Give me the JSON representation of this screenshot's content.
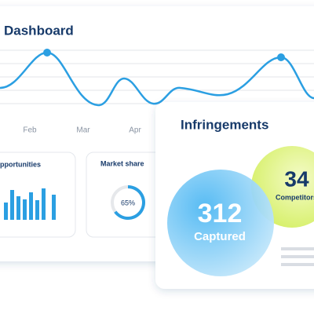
{
  "header": {
    "title": "Dashboard"
  },
  "months": [
    "Feb",
    "Mar",
    "Apr"
  ],
  "opportunities": {
    "title": "Opportunities"
  },
  "market_share": {
    "title": "Market share",
    "value": 65,
    "value_label": "65%"
  },
  "infringements": {
    "title": "Infringements",
    "captured": {
      "value": 312,
      "label": "Captured"
    },
    "competitors": {
      "value": 34,
      "label": "Competitors"
    }
  }
}
